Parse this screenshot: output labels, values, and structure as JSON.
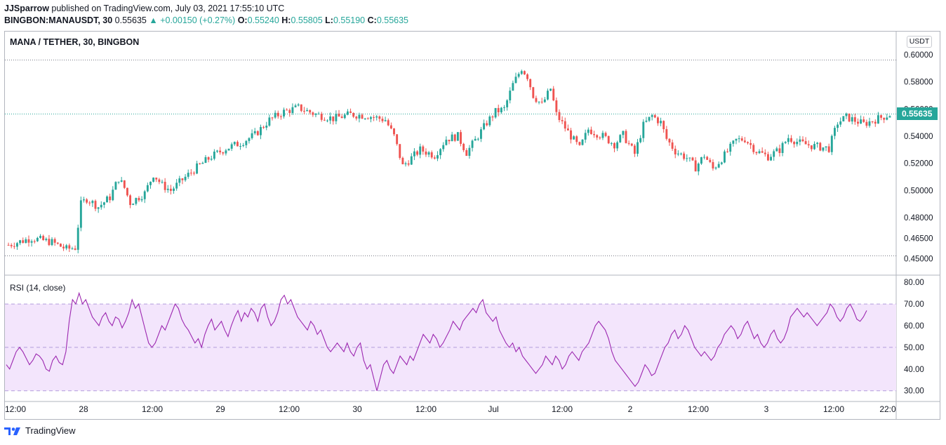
{
  "header": {
    "author": "JJSparrow",
    "published": "published on TradingView.com, July 03, 2021 17:55:10 UTC",
    "symbol": "BINGBON:MANAUSDT, 30",
    "last": "0.55635",
    "change": "▲ +0.00150 (+0.27%)",
    "o_label": "O:",
    "o": "0.55240",
    "h_label": "H:",
    "h": "0.55805",
    "l_label": "L:",
    "l": "0.55190",
    "c_label": "C:",
    "c": "0.55635"
  },
  "footer": {
    "brand": "TradingView"
  },
  "colors": {
    "up": "#26a69a",
    "down": "#ef5350",
    "rsi": "#9c27b0",
    "rsi_band": "#f3e5fc"
  },
  "chart_data": [
    {
      "type": "candlestick",
      "title": "MANA / TETHER, 30, BINGBON",
      "unit": "USDT",
      "last_price": "0.55635",
      "ylim": [
        0.445,
        0.603
      ],
      "y_ticks": [
        "0.60000",
        "0.58000",
        "0.56000",
        "0.54000",
        "0.52000",
        "0.50000",
        "0.48000",
        "0.46500",
        "0.45000"
      ],
      "x_ticks": [
        "12:00",
        "28",
        "12:00",
        "29",
        "12:00",
        "30",
        "12:00",
        "Jul",
        "12:00",
        "2",
        "12:00",
        "3",
        "12:00",
        "22:0"
      ],
      "close_path_anchors": [
        [
          0,
          0.46
        ],
        [
          8,
          0.465
        ],
        [
          15,
          0.462
        ],
        [
          20,
          0.457
        ],
        [
          23,
          0.458
        ],
        [
          25,
          0.49
        ],
        [
          27,
          0.494
        ],
        [
          31,
          0.488
        ],
        [
          35,
          0.495
        ],
        [
          38,
          0.509
        ],
        [
          40,
          0.502
        ],
        [
          42,
          0.491
        ],
        [
          47,
          0.498
        ],
        [
          50,
          0.512
        ],
        [
          53,
          0.504
        ],
        [
          56,
          0.5
        ],
        [
          60,
          0.508
        ],
        [
          65,
          0.517
        ],
        [
          70,
          0.525
        ],
        [
          75,
          0.531
        ],
        [
          80,
          0.535
        ],
        [
          85,
          0.541
        ],
        [
          90,
          0.552
        ],
        [
          95,
          0.558
        ],
        [
          100,
          0.561
        ],
        [
          106,
          0.556
        ],
        [
          112,
          0.553
        ],
        [
          118,
          0.556
        ],
        [
          124,
          0.555
        ],
        [
          130,
          0.552
        ],
        [
          133,
          0.54
        ],
        [
          136,
          0.518
        ],
        [
          139,
          0.524
        ],
        [
          142,
          0.53
        ],
        [
          147,
          0.526
        ],
        [
          151,
          0.538
        ],
        [
          155,
          0.54
        ],
        [
          158,
          0.528
        ],
        [
          161,
          0.537
        ],
        [
          165,
          0.55
        ],
        [
          168,
          0.558
        ],
        [
          171,
          0.56
        ],
        [
          174,
          0.578
        ],
        [
          177,
          0.59
        ],
        [
          179,
          0.584
        ],
        [
          181,
          0.57
        ],
        [
          184,
          0.563
        ],
        [
          187,
          0.575
        ],
        [
          189,
          0.556
        ],
        [
          193,
          0.543
        ],
        [
          197,
          0.531
        ],
        [
          200,
          0.545
        ],
        [
          205,
          0.54
        ],
        [
          209,
          0.534
        ],
        [
          212,
          0.541
        ],
        [
          216,
          0.527
        ],
        [
          219,
          0.548
        ],
        [
          222,
          0.555
        ],
        [
          225,
          0.55
        ],
        [
          227,
          0.538
        ],
        [
          230,
          0.529
        ],
        [
          234,
          0.524
        ],
        [
          237,
          0.517
        ],
        [
          240,
          0.526
        ],
        [
          243,
          0.516
        ],
        [
          247,
          0.526
        ],
        [
          251,
          0.537
        ],
        [
          254,
          0.538
        ],
        [
          258,
          0.529
        ],
        [
          262,
          0.525
        ],
        [
          266,
          0.53
        ],
        [
          269,
          0.539
        ],
        [
          273,
          0.535
        ],
        [
          277,
          0.533
        ],
        [
          283,
          0.531
        ],
        [
          286,
          0.55
        ],
        [
          289,
          0.554
        ],
        [
          295,
          0.549
        ],
        [
          300,
          0.553
        ],
        [
          304,
          0.556
        ]
      ],
      "candle_count": 305
    },
    {
      "type": "line",
      "title": "RSI (14, close)",
      "ylim": [
        27,
        82
      ],
      "y_ticks": [
        "80.00",
        "70.00",
        "60.00",
        "50.00",
        "40.00",
        "30.00"
      ],
      "band": [
        30,
        70
      ],
      "midline": 50,
      "values": [
        42,
        40,
        44,
        48,
        50,
        48,
        45,
        42,
        44,
        47,
        46,
        44,
        40,
        39,
        44,
        46,
        43,
        42,
        48,
        62,
        72,
        70,
        75,
        70,
        72,
        68,
        64,
        62,
        60,
        64,
        66,
        62,
        60,
        64,
        63,
        59,
        62,
        66,
        72,
        68,
        70,
        64,
        58,
        52,
        50,
        52,
        56,
        60,
        58,
        62,
        66,
        70,
        68,
        63,
        60,
        58,
        55,
        52,
        54,
        50,
        56,
        60,
        63,
        58,
        60,
        62,
        58,
        55,
        60,
        64,
        67,
        62,
        66,
        64,
        68,
        66,
        62,
        68,
        70,
        64,
        60,
        62,
        66,
        72,
        74,
        70,
        72,
        68,
        64,
        62,
        60,
        58,
        62,
        60,
        56,
        58,
        54,
        50,
        48,
        50,
        52,
        50,
        48,
        52,
        48,
        46,
        50,
        52,
        44,
        40,
        42,
        36,
        30,
        36,
        42,
        44,
        40,
        38,
        42,
        46,
        44,
        42,
        46,
        44,
        48,
        52,
        56,
        54,
        52,
        56,
        54,
        50,
        52,
        55,
        58,
        62,
        60,
        58,
        62,
        64,
        66,
        68,
        66,
        70,
        72,
        66,
        64,
        62,
        64,
        58,
        55,
        52,
        50,
        52,
        48,
        50,
        46,
        44,
        42,
        40,
        38,
        40,
        42,
        46,
        44,
        42,
        46,
        44,
        40,
        42,
        46,
        48,
        46,
        44,
        48,
        50,
        52,
        56,
        60,
        62,
        60,
        58,
        54,
        48,
        44,
        42,
        40,
        38,
        36,
        34,
        32,
        34,
        38,
        42,
        40,
        37,
        38,
        42,
        46,
        50,
        52,
        56,
        58,
        54,
        56,
        60,
        58,
        54,
        50,
        48,
        46,
        48,
        46,
        44,
        46,
        50,
        52,
        56,
        58,
        60,
        58,
        54,
        56,
        60,
        62,
        58,
        54,
        56,
        52,
        50,
        52,
        56,
        58,
        54,
        52,
        54,
        58,
        64,
        66,
        68,
        66,
        64,
        66,
        64,
        62,
        60,
        62,
        64,
        66,
        70,
        68,
        64,
        62,
        64,
        68,
        70,
        67,
        63,
        62,
        64,
        67
      ]
    }
  ]
}
